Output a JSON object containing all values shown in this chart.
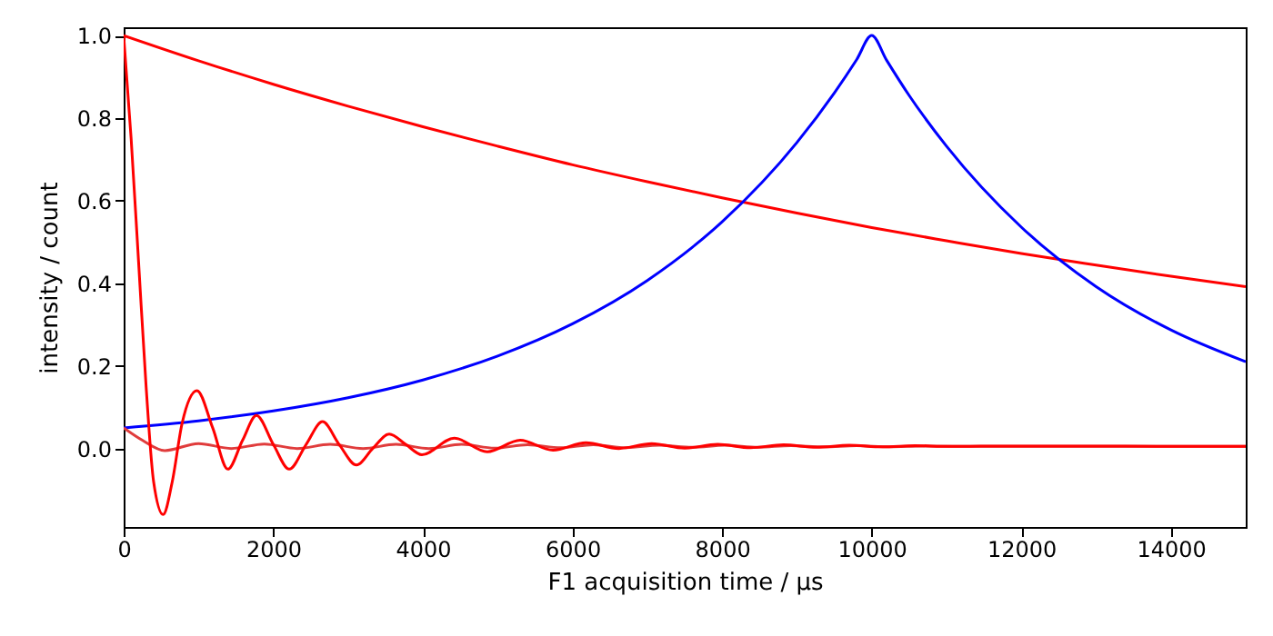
{
  "chart_data": {
    "type": "line",
    "xlabel": "F1 acquisition time / µs",
    "ylabel": "intensity / count",
    "xlim": [
      0,
      15000
    ],
    "ylim": [
      -0.19,
      1.02
    ],
    "xticks": [
      0,
      2000,
      4000,
      6000,
      8000,
      10000,
      12000,
      14000
    ],
    "yticks": [
      {
        "value": 0,
        "label": "0.0"
      },
      {
        "value": 0.2,
        "label": "0.2"
      },
      {
        "value": 0.4,
        "label": "0.4"
      },
      {
        "value": 0.6,
        "label": "0.6"
      },
      {
        "value": 0.8,
        "label": "0.8"
      },
      {
        "value": 1,
        "label": "1.0"
      }
    ],
    "grid": false,
    "series": [
      {
        "color": "#ff0000",
        "x": [
          0,
          1000,
          2000,
          3000,
          4000,
          5000,
          6000,
          7000,
          8000,
          9000,
          10000,
          11000,
          12000,
          13000,
          14000,
          15000
        ],
        "values": [
          1,
          0.939,
          0.882,
          0.829,
          0.779,
          0.732,
          0.687,
          0.646,
          0.607,
          0.57,
          0.535,
          0.503,
          0.472,
          0.444,
          0.417,
          0.392
        ]
      },
      {
        "color": "#0000ff",
        "x": [
          0,
          1000,
          2000,
          3000,
          4000,
          5000,
          6000,
          7000,
          8000,
          9000,
          9500,
          9800,
          10000,
          10200,
          10500,
          11000,
          12000,
          13000,
          14000,
          15000
        ],
        "values": [
          0.05,
          0.067,
          0.091,
          0.123,
          0.166,
          0.224,
          0.302,
          0.407,
          0.549,
          0.741,
          0.861,
          0.942,
          1,
          0.94,
          0.855,
          0.732,
          0.536,
          0.392,
          0.287,
          0.21
        ]
      },
      {
        "color": "#e03c3c",
        "x": [
          0,
          250,
          550,
          1000,
          1440,
          1880,
          2320,
          2760,
          3200,
          3640,
          4080,
          4520,
          4960,
          5400,
          5840,
          6280,
          6720,
          7160,
          7600,
          8040,
          8480,
          8920,
          9360,
          9800,
          10240,
          10680,
          11500,
          15000
        ],
        "values": [
          0.05,
          0.02,
          -0.005,
          0.012,
          0,
          0.011,
          0,
          0.01,
          0,
          0.01,
          0,
          0.01,
          0.001,
          0.009,
          0.002,
          0.009,
          0.002,
          0.008,
          0.003,
          0.008,
          0.003,
          0.007,
          0.004,
          0.007,
          0.004,
          0.006,
          0.005,
          0.005
        ]
      },
      {
        "color": "#ff0000",
        "x": [
          0,
          100,
          200,
          300,
          400,
          527,
          650,
          780,
          980,
          1190,
          1393,
          1590,
          1775,
          2000,
          2213,
          2440,
          2658,
          2880,
          3112,
          3330,
          3550,
          3770,
          3987,
          4420,
          4860,
          5300,
          5740,
          6180,
          6620,
          7060,
          7500,
          7940,
          8380,
          8820,
          9260,
          9700,
          10140,
          10580,
          11020,
          11460,
          15000
        ],
        "values": [
          1,
          0.75,
          0.45,
          0.15,
          -0.08,
          -0.16,
          -0.08,
          0.06,
          0.14,
          0.05,
          -0.05,
          0.02,
          0.08,
          0.01,
          -0.05,
          0.01,
          0.065,
          0.01,
          -0.04,
          0,
          0.035,
          0.01,
          -0.015,
          0.025,
          -0.008,
          0.02,
          -0.004,
          0.014,
          0,
          0.012,
          0.001,
          0.01,
          0.002,
          0.009,
          0.003,
          0.008,
          0.004,
          0.007,
          0.005,
          0.006,
          0.005
        ]
      }
    ]
  }
}
